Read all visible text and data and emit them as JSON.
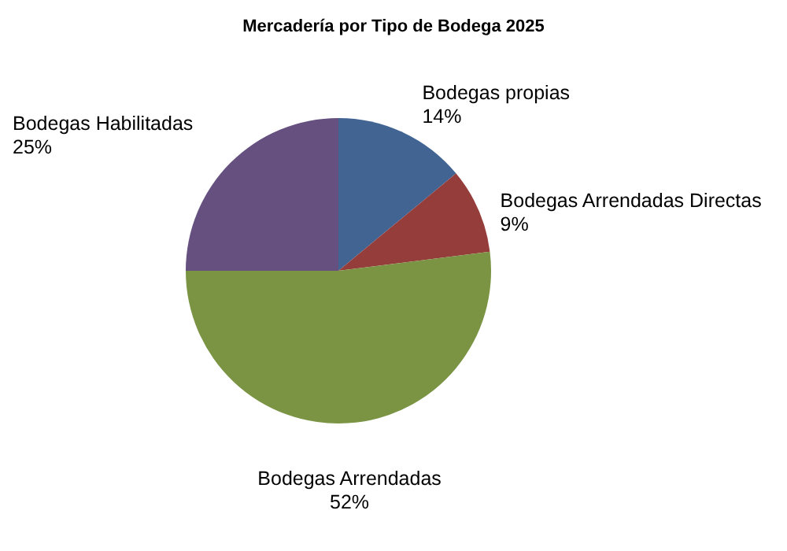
{
  "chart_data": {
    "type": "pie",
    "title": "Mercadería por Tipo de Bodega 2025",
    "categories": [
      "Bodegas propias",
      "Bodegas Arrendadas Directas",
      "Bodegas Arrendadas",
      "Bodegas Habilitadas"
    ],
    "values": [
      14,
      9,
      52,
      25
    ],
    "value_labels": [
      "14%",
      "9%",
      "52%",
      "25%"
    ],
    "colors": [
      "#416493",
      "#953d3b",
      "#7a9444",
      "#65507f"
    ]
  }
}
